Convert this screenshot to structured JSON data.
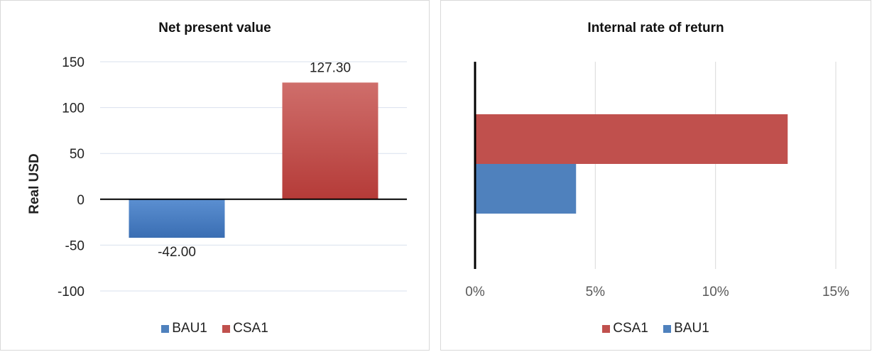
{
  "colors": {
    "bau1": "#4f81bd",
    "csa1": "#c0504d",
    "grid": "#d9e1ee",
    "axis": "#000000"
  },
  "chart_data": [
    {
      "type": "bar",
      "title": "Net present value",
      "xlabel": "",
      "ylabel": "Real USD",
      "ylim": [
        -100,
        150
      ],
      "yticks": [
        "150",
        "100",
        "50",
        "0",
        "-50",
        "-100"
      ],
      "grid": true,
      "legend_position": "bottom",
      "series": [
        {
          "name": "BAU1",
          "value": -42.0,
          "label": "-42.00"
        },
        {
          "name": "CSA1",
          "value": 127.3,
          "label": "127.30"
        }
      ]
    },
    {
      "type": "bar",
      "orientation": "horizontal",
      "title": "Internal rate of return",
      "xlim": [
        0,
        0.15
      ],
      "xticks": [
        "0%",
        "5%",
        "10%",
        "15%"
      ],
      "grid": true,
      "legend_position": "bottom",
      "series": [
        {
          "name": "CSA1",
          "value": 0.13
        },
        {
          "name": "BAU1",
          "value": 0.042
        }
      ]
    }
  ]
}
